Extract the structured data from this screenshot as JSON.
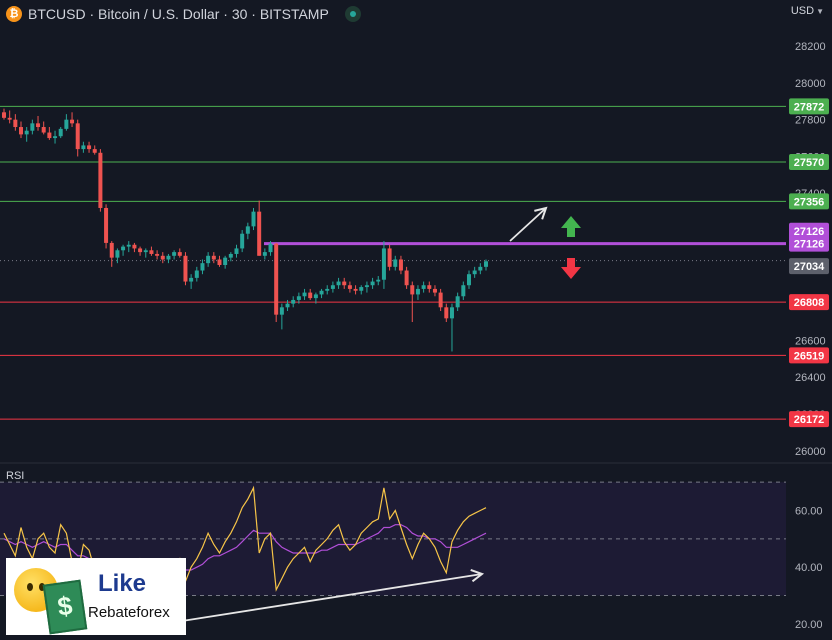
{
  "header": {
    "symbol": "BTCUSD",
    "title": "BTCUSD · Bitcoin / U.S. Dollar · 30 · BITSTAMP",
    "currency": "USD"
  },
  "colors": {
    "background": "#141823",
    "candle_up": "#26a69a",
    "candle_down": "#ef5350",
    "resistance": "#4caf50",
    "support": "#f23645",
    "pivot": "#b14fd8",
    "rsi_line": "#f7c548",
    "rsi_ma": "#b14fd8",
    "rsi_band": "#1d1b34",
    "current_price": "#5d606b",
    "arrow_white": "#e6e6e6",
    "arrow_green": "#43b54f",
    "arrow_red": "#f23645"
  },
  "logo": {
    "like": "Like",
    "brand": "Rebateforex"
  },
  "chart_data": [
    {
      "type": "candlestick",
      "ylim": [
        25950,
        28320
      ],
      "y_ticks": [
        26000,
        26200,
        26400,
        26600,
        26800,
        27000,
        27200,
        27400,
        27600,
        27800,
        28000,
        28200
      ],
      "grid": false,
      "levels": [
        {
          "price": 27872,
          "label": "27872",
          "kind": "resistance"
        },
        {
          "price": 27570,
          "label": "27570",
          "kind": "resistance"
        },
        {
          "price": 27356,
          "label": "27356",
          "kind": "resistance"
        },
        {
          "price": 27126,
          "label": "27126",
          "kind": "pivot"
        },
        {
          "price": 26808,
          "label": "26808",
          "kind": "support"
        },
        {
          "price": 26519,
          "label": "26519",
          "kind": "support"
        },
        {
          "price": 26172,
          "label": "26172",
          "kind": "support"
        }
      ],
      "current_price": {
        "price": 27034,
        "label": "27034"
      },
      "candles": [
        [
          27840,
          27860,
          27800,
          27810
        ],
        [
          27810,
          27850,
          27780,
          27800
        ],
        [
          27800,
          27830,
          27740,
          27760
        ],
        [
          27760,
          27790,
          27700,
          27720
        ],
        [
          27720,
          27760,
          27680,
          27740
        ],
        [
          27740,
          27800,
          27720,
          27780
        ],
        [
          27780,
          27820,
          27740,
          27760
        ],
        [
          27760,
          27790,
          27720,
          27730
        ],
        [
          27730,
          27760,
          27690,
          27700
        ],
        [
          27700,
          27740,
          27670,
          27710
        ],
        [
          27710,
          27760,
          27700,
          27750
        ],
        [
          27750,
          27830,
          27740,
          27800
        ],
        [
          27800,
          27840,
          27760,
          27780
        ],
        [
          27780,
          27800,
          27600,
          27640
        ],
        [
          27640,
          27680,
          27620,
          27660
        ],
        [
          27660,
          27680,
          27620,
          27640
        ],
        [
          27640,
          27660,
          27610,
          27620
        ],
        [
          27620,
          27640,
          27300,
          27320
        ],
        [
          27320,
          27340,
          27100,
          27130
        ],
        [
          27130,
          27140,
          27000,
          27050
        ],
        [
          27050,
          27100,
          27020,
          27090
        ],
        [
          27090,
          27120,
          27060,
          27110
        ],
        [
          27110,
          27140,
          27080,
          27120
        ],
        [
          27120,
          27130,
          27080,
          27100
        ],
        [
          27100,
          27110,
          27060,
          27080
        ],
        [
          27080,
          27100,
          27050,
          27090
        ],
        [
          27090,
          27110,
          27060,
          27070
        ],
        [
          27070,
          27090,
          27040,
          27060
        ],
        [
          27060,
          27080,
          27020,
          27040
        ],
        [
          27040,
          27070,
          27020,
          27060
        ],
        [
          27060,
          27090,
          27040,
          27080
        ],
        [
          27080,
          27100,
          27050,
          27060
        ],
        [
          27060,
          27080,
          26900,
          26920
        ],
        [
          26920,
          26960,
          26880,
          26940
        ],
        [
          26940,
          27000,
          26920,
          26980
        ],
        [
          26980,
          27040,
          26960,
          27020
        ],
        [
          27020,
          27080,
          27000,
          27060
        ],
        [
          27060,
          27080,
          27020,
          27040
        ],
        [
          27040,
          27060,
          27000,
          27010
        ],
        [
          27010,
          27060,
          26990,
          27050
        ],
        [
          27050,
          27080,
          27030,
          27070
        ],
        [
          27070,
          27120,
          27050,
          27100
        ],
        [
          27100,
          27200,
          27080,
          27180
        ],
        [
          27180,
          27240,
          27150,
          27220
        ],
        [
          27220,
          27320,
          27200,
          27300
        ],
        [
          27300,
          27360,
          27060,
          27060
        ],
        [
          27060,
          27100,
          27040,
          27080
        ],
        [
          27080,
          27140,
          27060,
          27126
        ],
        [
          27126,
          27130,
          26700,
          26740
        ],
        [
          26740,
          26800,
          26660,
          26780
        ],
        [
          26780,
          26820,
          26760,
          26800
        ],
        [
          26800,
          26840,
          26780,
          26820
        ],
        [
          26820,
          26860,
          26800,
          26840
        ],
        [
          26840,
          26880,
          26820,
          26860
        ],
        [
          26860,
          26880,
          26820,
          26830
        ],
        [
          26830,
          26860,
          26800,
          26850
        ],
        [
          26850,
          26880,
          26830,
          26870
        ],
        [
          26870,
          26900,
          26850,
          26880
        ],
        [
          26880,
          26920,
          26860,
          26900
        ],
        [
          26900,
          26940,
          26880,
          26920
        ],
        [
          26920,
          26940,
          26880,
          26900
        ],
        [
          26900,
          26920,
          26860,
          26880
        ],
        [
          26880,
          26900,
          26850,
          26870
        ],
        [
          26870,
          26900,
          26850,
          26890
        ],
        [
          26890,
          26920,
          26860,
          26900
        ],
        [
          26900,
          26940,
          26880,
          26920
        ],
        [
          26920,
          26950,
          26900,
          26930
        ],
        [
          26930,
          27140,
          26880,
          27100
        ],
        [
          27100,
          27120,
          26980,
          27000
        ],
        [
          27000,
          27060,
          26980,
          27040
        ],
        [
          27040,
          27060,
          26960,
          26980
        ],
        [
          26980,
          27000,
          26880,
          26900
        ],
        [
          26900,
          26920,
          26700,
          26850
        ],
        [
          26850,
          26900,
          26820,
          26880
        ],
        [
          26880,
          26920,
          26860,
          26900
        ],
        [
          26900,
          26920,
          26860,
          26880
        ],
        [
          26880,
          26900,
          26840,
          26860
        ],
        [
          26860,
          26880,
          26760,
          26780
        ],
        [
          26780,
          26800,
          26700,
          26720
        ],
        [
          26720,
          26800,
          26540,
          26780
        ],
        [
          26780,
          26860,
          26760,
          26840
        ],
        [
          26840,
          26920,
          26820,
          26900
        ],
        [
          26900,
          26980,
          26880,
          26960
        ],
        [
          26960,
          27000,
          26940,
          26980
        ],
        [
          26980,
          27020,
          26960,
          27000
        ],
        [
          27000,
          27040,
          26980,
          27030
        ]
      ]
    },
    {
      "type": "line",
      "title": "RSI",
      "ylim": [
        15,
        75
      ],
      "y_ticks": [
        20,
        40,
        60
      ],
      "y_tick_labels": [
        "20.00",
        "40.00",
        "60.00"
      ],
      "bands": [
        30,
        50,
        70
      ],
      "series": [
        {
          "kind": "rsi",
          "values": [
            52,
            48,
            44,
            54,
            47,
            43,
            50,
            52,
            47,
            45,
            55,
            52,
            42,
            38,
            48,
            46,
            39,
            33,
            30,
            28,
            34,
            38,
            41,
            39,
            43,
            41,
            40,
            42,
            39,
            37,
            40,
            43,
            35,
            40,
            43,
            47,
            52,
            48,
            45,
            49,
            52,
            56,
            61,
            64,
            68,
            45,
            50,
            52,
            32,
            36,
            40,
            43,
            45,
            47,
            42,
            46,
            48,
            50,
            53,
            55,
            49,
            46,
            48,
            52,
            54,
            56,
            57,
            68,
            57,
            60,
            54,
            48,
            43,
            48,
            52,
            50,
            47,
            42,
            38,
            49,
            53,
            56,
            58,
            59,
            60,
            61
          ]
        },
        {
          "kind": "rsi_ma",
          "values": [
            50,
            49,
            48,
            49,
            48,
            47,
            48,
            49,
            48,
            47,
            48,
            48,
            46,
            44,
            44,
            43,
            42,
            40,
            38,
            36,
            35,
            35,
            36,
            37,
            38,
            39,
            39,
            40,
            40,
            39,
            39,
            40,
            39,
            39,
            40,
            41,
            43,
            44,
            44,
            45,
            46,
            47,
            49,
            51,
            53,
            52,
            52,
            52,
            49,
            47,
            46,
            45,
            45,
            45,
            45,
            45,
            46,
            46,
            47,
            48,
            48,
            48,
            48,
            49,
            50,
            51,
            52,
            54,
            54,
            55,
            55,
            54,
            52,
            51,
            51,
            50,
            50,
            49,
            47,
            47,
            47,
            48,
            49,
            50,
            51,
            52
          ]
        }
      ]
    }
  ]
}
